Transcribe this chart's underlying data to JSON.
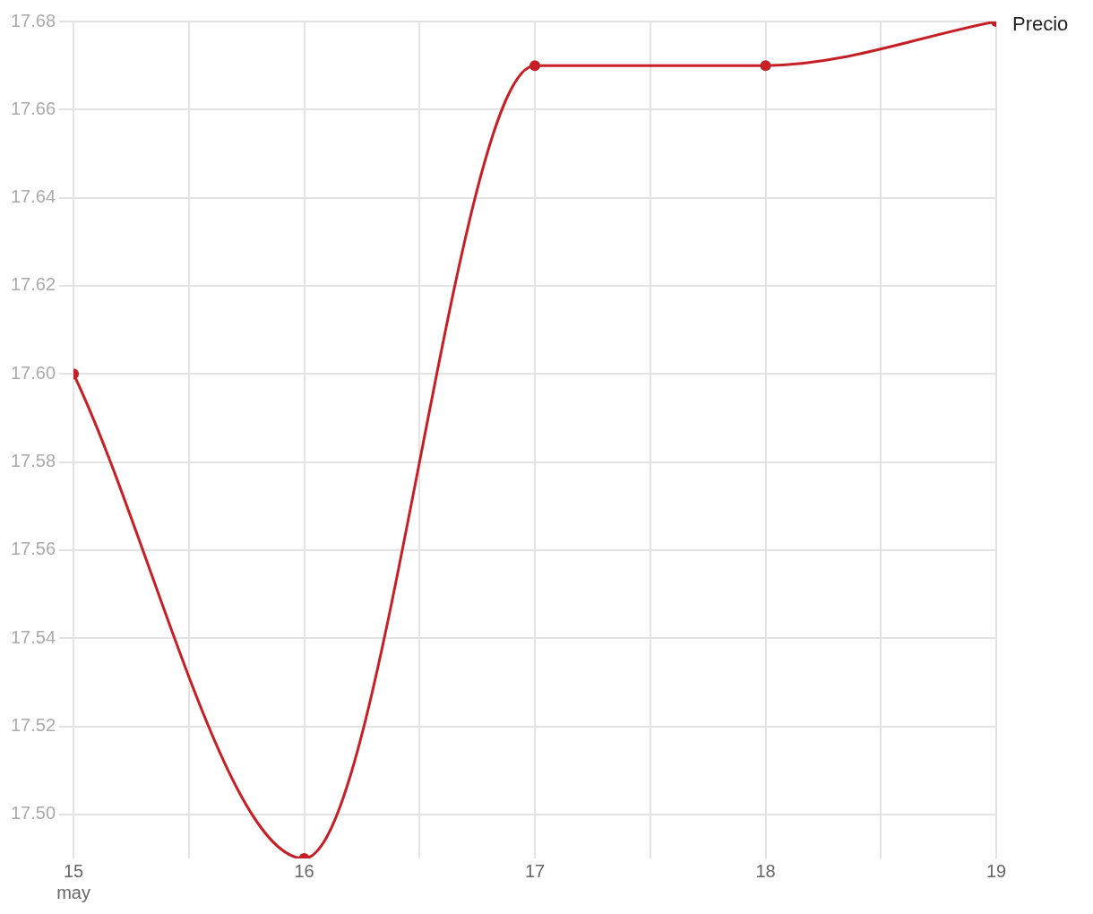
{
  "chart_data": {
    "type": "line",
    "x": [
      "--05-15",
      "--05-16",
      "--05-17",
      "--05-18",
      "--05-19"
    ],
    "series": [
      {
        "name": "Precio",
        "color": "#c62026",
        "values": [
          17.6,
          17.49,
          17.67,
          17.67,
          17.68
        ]
      }
    ],
    "xlim": [
      "--05-15",
      "--05-19"
    ],
    "xticks": [
      {
        "value": "--05-15",
        "label": "15\nmay"
      },
      {
        "value": "--05-15T12:00",
        "label": null
      },
      {
        "value": "--05-16",
        "label": "16"
      },
      {
        "value": "--05-16T12:00",
        "label": null
      },
      {
        "value": "--05-17",
        "label": "17"
      },
      {
        "value": "--05-17T12:00",
        "label": null
      },
      {
        "value": "--05-18",
        "label": "18"
      },
      {
        "value": "--05-18T12:00",
        "label": null
      },
      {
        "value": "--05-19",
        "label": "19"
      }
    ],
    "ylim": [
      17.49,
      17.68
    ],
    "yticks": [
      {
        "value": 17.5,
        "label": "17.50"
      },
      17.52,
      17.54,
      17.56,
      17.58,
      {
        "value": 17.6,
        "label": "17.60"
      },
      17.62,
      17.64,
      17.66,
      17.68
    ],
    "grid": true,
    "legend": false,
    "marker": "circle",
    "line_style": "solid"
  }
}
